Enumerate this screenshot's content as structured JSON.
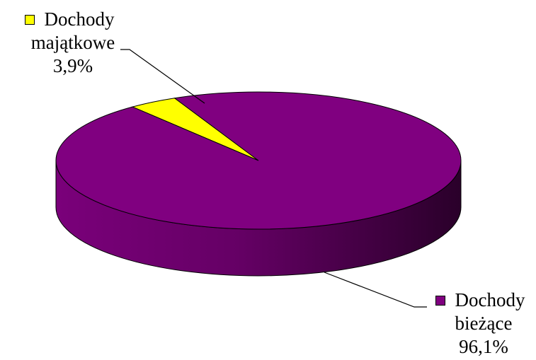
{
  "chart_data": {
    "type": "pie",
    "style": "3d",
    "slices": [
      {
        "label_lines": [
          "Dochody",
          "majątkowe"
        ],
        "value": 3.9,
        "value_label": "3,9%",
        "color": "#ffff00"
      },
      {
        "label_lines": [
          "Dochody",
          "bieżące"
        ],
        "value": 96.1,
        "value_label": "96,1%",
        "color": "#800080"
      }
    ]
  }
}
